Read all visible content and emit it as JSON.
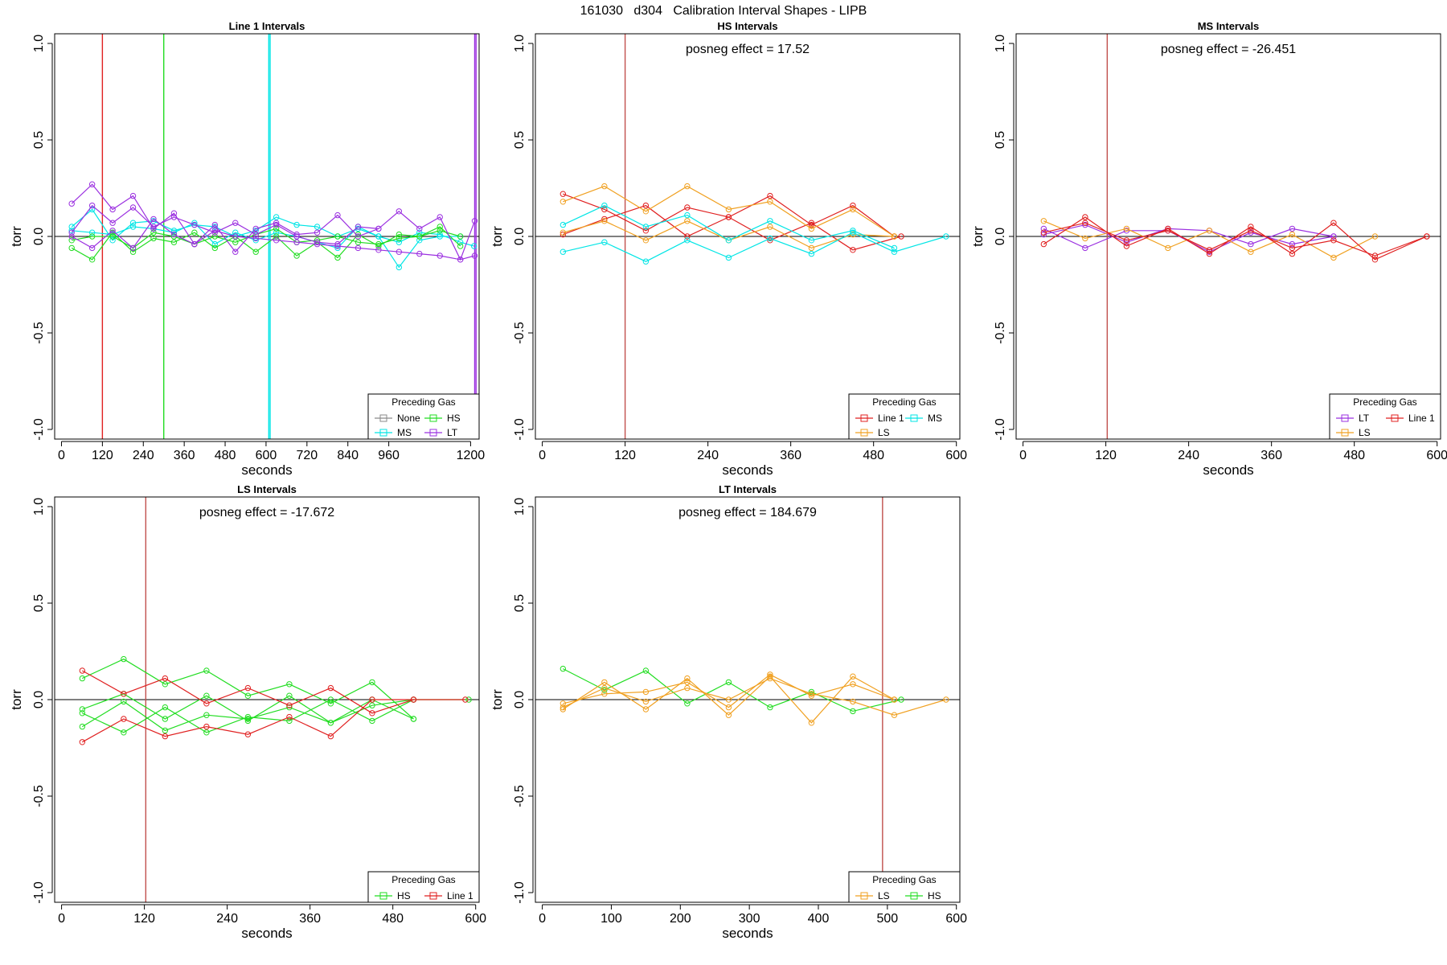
{
  "page_title": "161030   d304   Calibration Interval Shapes - LIPB",
  "colors": {
    "None": "#8a8a8a",
    "MS": "#00e5e5",
    "HS": "#22dd22",
    "LT": "#9b30e0",
    "Line 1": "#e02020",
    "LS": "#f0a020",
    "marker_line": "#c0504d"
  },
  "chart_data": [
    {
      "type": "line",
      "title": "Line 1 Intervals",
      "xlabel": "seconds",
      "ylabel": "torr",
      "xlim": [
        -20,
        1225
      ],
      "ylim": [
        -1.05,
        1.05
      ],
      "xticks": [
        0,
        120,
        240,
        360,
        480,
        600,
        720,
        840,
        960,
        1200
      ],
      "yticks": [
        -1.0,
        -0.5,
        0.0,
        0.5,
        1.0
      ],
      "ytick_labels": [
        "-1.0",
        "-0.5",
        "0.0",
        "0.5",
        "1.0"
      ],
      "posneg_label": "",
      "legend": {
        "title": "Preceding Gas",
        "entries": [
          "None",
          "HS",
          "MS",
          "LT"
        ],
        "columns": 2
      },
      "vlines": [
        {
          "x": 120,
          "color": "Line 1"
        },
        {
          "x": 300,
          "color": "HS"
        },
        {
          "x": 608,
          "color": "MS"
        },
        {
          "x": 612,
          "color": "MS"
        },
        {
          "x": 1212,
          "color": "LT"
        },
        {
          "x": 1216,
          "color": "LT"
        }
      ],
      "series": [
        {
          "gas": "MS",
          "x": [
            30,
            90,
            150,
            210,
            270,
            330,
            390,
            450,
            510,
            570,
            630,
            690,
            750,
            810,
            870,
            930,
            990,
            1050,
            1110,
            1170
          ],
          "y": [
            0.05,
            0.14,
            -0.02,
            0.07,
            0.08,
            0.03,
            0.06,
            0.05,
            0.0,
            0.03,
            0.1,
            0.06,
            0.05,
            0.0,
            0.04,
            0.0,
            -0.16,
            -0.02,
            0.0,
            0.0
          ]
        },
        {
          "gas": "MS",
          "x": [
            30,
            90,
            150,
            210,
            270,
            330,
            390,
            450,
            510,
            570,
            630,
            690,
            750,
            810,
            870,
            930,
            990,
            1050,
            1110,
            1170,
            1210
          ],
          "y": [
            0.03,
            0.02,
            0.01,
            0.05,
            0.04,
            0.02,
            0.07,
            -0.04,
            0.02,
            -0.02,
            0.02,
            0.0,
            -0.03,
            -0.06,
            0.05,
            0.0,
            -0.03,
            0.02,
            0.01,
            -0.03,
            -0.05
          ]
        },
        {
          "gas": "HS",
          "x": [
            30,
            90,
            150,
            210,
            270,
            330,
            390,
            450,
            510,
            570,
            630,
            690,
            750,
            810,
            870,
            930,
            990,
            1050,
            1110,
            1170
          ],
          "y": [
            -0.06,
            -0.12,
            0.02,
            -0.08,
            -0.01,
            -0.03,
            0.02,
            -0.06,
            0.0,
            -0.08,
            0.0,
            -0.1,
            -0.03,
            -0.11,
            0.01,
            -0.05,
            0.01,
            0.0,
            0.03,
            0.0
          ]
        },
        {
          "gas": "HS",
          "x": [
            30,
            90,
            150,
            210,
            270,
            330,
            390,
            450,
            510,
            570,
            630,
            690,
            750,
            810,
            870,
            930,
            990,
            1050,
            1110,
            1170
          ],
          "y": [
            -0.02,
            0.0,
            0.0,
            -0.06,
            0.02,
            0.0,
            -0.04,
            0.0,
            -0.03,
            0.01,
            0.04,
            -0.03,
            -0.02,
            0.0,
            -0.03,
            -0.04,
            -0.01,
            0.0,
            0.05,
            -0.05
          ]
        },
        {
          "gas": "LT",
          "x": [
            30,
            90,
            150,
            210,
            270,
            330,
            390,
            450,
            510,
            570,
            630,
            690,
            750,
            810,
            870,
            930,
            990,
            1050,
            1110,
            1170,
            1212
          ],
          "y": [
            0.17,
            0.27,
            0.14,
            0.21,
            0.04,
            0.12,
            -0.04,
            0.06,
            -0.08,
            0.04,
            0.07,
            0.01,
            0.02,
            0.11,
            0.0,
            0.04,
            0.13,
            0.04,
            0.1,
            -0.12,
            0.08
          ]
        },
        {
          "gas": "LT",
          "x": [
            30,
            90,
            150,
            210,
            270,
            330,
            390,
            450,
            510,
            570,
            630,
            690,
            750,
            810,
            870,
            930
          ],
          "y": [
            0.02,
            0.16,
            0.07,
            0.15,
            0.05,
            0.1,
            0.06,
            0.02,
            0.07,
            0.01,
            0.06,
            0.0,
            -0.03,
            -0.04,
            0.05,
            0.04
          ]
        },
        {
          "gas": "LT",
          "x": [
            30,
            90,
            150,
            210,
            270,
            330,
            390,
            450,
            510,
            570,
            630,
            690,
            750,
            810,
            870,
            930,
            990,
            1050,
            1110,
            1170,
            1212
          ],
          "y": [
            0.0,
            -0.06,
            0.03,
            -0.06,
            0.09,
            0.01,
            -0.04,
            0.03,
            0.0,
            -0.01,
            -0.02,
            -0.03,
            -0.04,
            -0.05,
            -0.06,
            -0.07,
            -0.08,
            -0.09,
            -0.1,
            -0.12,
            -0.1
          ]
        }
      ]
    },
    {
      "type": "line",
      "title": "HS Intervals",
      "xlabel": "seconds",
      "ylabel": "torr",
      "xlim": [
        -10,
        605
      ],
      "ylim": [
        -1.05,
        1.05
      ],
      "xticks": [
        0,
        120,
        240,
        360,
        480,
        600
      ],
      "yticks": [
        -1.0,
        -0.5,
        0.0,
        0.5,
        1.0
      ],
      "ytick_labels": [
        "-1.0",
        "-0.5",
        "0.0",
        "0.5",
        "1.0"
      ],
      "posneg_label": "posneg effect = 17.52",
      "legend": {
        "title": "Preceding Gas",
        "entries": [
          "Line 1",
          "MS",
          "LS"
        ],
        "columns": 2
      },
      "vlines": [
        {
          "x": 120,
          "color": "marker_line"
        }
      ],
      "series": [
        {
          "gas": "Line 1",
          "x": [
            30,
            90,
            150,
            210,
            270,
            330,
            390,
            450,
            510
          ],
          "y": [
            0.22,
            0.14,
            0.03,
            0.15,
            0.1,
            0.21,
            0.06,
            0.16,
            0.0
          ]
        },
        {
          "gas": "Line 1",
          "x": [
            30,
            90,
            150,
            210,
            270,
            330,
            390,
            450,
            520
          ],
          "y": [
            0.01,
            0.09,
            0.16,
            0.0,
            0.1,
            -0.02,
            0.07,
            -0.07,
            0.0
          ]
        },
        {
          "gas": "LS",
          "x": [
            30,
            90,
            150,
            210,
            270,
            330,
            390,
            450,
            510
          ],
          "y": [
            0.18,
            0.26,
            0.13,
            0.26,
            0.14,
            0.18,
            0.04,
            0.14,
            0.0
          ]
        },
        {
          "gas": "LS",
          "x": [
            30,
            90,
            150,
            210,
            270,
            330,
            390,
            450,
            510
          ],
          "y": [
            0.02,
            0.08,
            -0.02,
            0.08,
            -0.02,
            0.05,
            -0.06,
            0.01,
            0.0
          ]
        },
        {
          "gas": "MS",
          "x": [
            30,
            90,
            150,
            210,
            270,
            330,
            390,
            450,
            510
          ],
          "y": [
            0.06,
            0.16,
            0.05,
            0.11,
            -0.02,
            0.08,
            -0.02,
            0.03,
            -0.06
          ]
        },
        {
          "gas": "MS",
          "x": [
            30,
            90,
            150,
            210,
            270,
            330,
            390,
            450,
            510,
            585
          ],
          "y": [
            -0.08,
            -0.03,
            -0.13,
            -0.02,
            -0.11,
            -0.01,
            -0.09,
            0.02,
            -0.08,
            0.0
          ]
        }
      ]
    },
    {
      "type": "line",
      "title": "MS Intervals",
      "xlabel": "seconds",
      "ylabel": "torr",
      "xlim": [
        -10,
        605
      ],
      "ylim": [
        -1.05,
        1.05
      ],
      "xticks": [
        0,
        120,
        240,
        360,
        480,
        600
      ],
      "yticks": [
        -1.0,
        -0.5,
        0.0,
        0.5,
        1.0
      ],
      "ytick_labels": [
        "-1.0",
        "-0.5",
        "0.0",
        "0.5",
        "1.0"
      ],
      "posneg_label": "posneg effect = -26.451",
      "legend": {
        "title": "Preceding Gas",
        "entries": [
          "LT",
          "Line 1",
          "LS"
        ],
        "columns": 2
      },
      "vlines": [
        {
          "x": 122,
          "color": "marker_line"
        }
      ],
      "series": [
        {
          "gas": "LT",
          "x": [
            30,
            90,
            150,
            210,
            270,
            330,
            390,
            450
          ],
          "y": [
            0.04,
            -0.06,
            0.03,
            0.03,
            -0.08,
            0.02,
            -0.04,
            0.0
          ]
        },
        {
          "gas": "LT",
          "x": [
            30,
            90,
            150,
            210,
            270,
            330,
            390,
            450
          ],
          "y": [
            0.01,
            0.06,
            -0.03,
            0.04,
            0.03,
            -0.04,
            0.04,
            0.0
          ]
        },
        {
          "gas": "LS",
          "x": [
            30,
            90,
            150,
            210,
            270,
            330,
            390,
            450,
            510
          ],
          "y": [
            0.08,
            -0.01,
            0.04,
            -0.06,
            0.03,
            -0.08,
            0.01,
            -0.11,
            0.0
          ]
        },
        {
          "gas": "Line 1",
          "x": [
            30,
            90,
            150,
            210,
            270,
            330,
            390,
            450,
            510,
            585
          ],
          "y": [
            -0.04,
            0.1,
            -0.05,
            0.04,
            -0.09,
            0.05,
            -0.09,
            0.07,
            -0.12,
            0.0
          ]
        },
        {
          "gas": "Line 1",
          "x": [
            30,
            90,
            150,
            210,
            270,
            330,
            390,
            450,
            510,
            585
          ],
          "y": [
            0.02,
            0.07,
            -0.02,
            0.03,
            -0.07,
            0.03,
            -0.06,
            -0.02,
            -0.1,
            0.0
          ]
        }
      ]
    },
    {
      "type": "line",
      "title": "LS Intervals",
      "xlabel": "seconds",
      "ylabel": "torr",
      "xlim": [
        -10,
        605
      ],
      "ylim": [
        -1.05,
        1.05
      ],
      "xticks": [
        0,
        120,
        240,
        360,
        480,
        600
      ],
      "yticks": [
        -1.0,
        -0.5,
        0.0,
        0.5,
        1.0
      ],
      "ytick_labels": [
        "-1.0",
        "-0.5",
        "0.0",
        "0.5",
        "1.0"
      ],
      "posneg_label": "posneg effect = -17.672",
      "legend": {
        "title": "Preceding Gas",
        "entries": [
          "HS",
          "Line 1"
        ],
        "columns": 2
      },
      "vlines": [
        {
          "x": 122,
          "color": "marker_line"
        }
      ],
      "series": [
        {
          "gas": "HS",
          "x": [
            30,
            90,
            150,
            210,
            270,
            330,
            390,
            450,
            510
          ],
          "y": [
            0.11,
            0.21,
            0.08,
            0.15,
            0.02,
            0.08,
            -0.02,
            0.09,
            -0.1
          ]
        },
        {
          "gas": "HS",
          "x": [
            30,
            90,
            150,
            210,
            270,
            330,
            390,
            450,
            510
          ],
          "y": [
            -0.05,
            0.03,
            -0.1,
            0.02,
            -0.11,
            0.02,
            -0.12,
            0.0,
            -0.1
          ]
        },
        {
          "gas": "HS",
          "x": [
            30,
            90,
            150,
            210,
            270,
            330,
            390,
            450,
            510
          ],
          "y": [
            -0.07,
            -0.17,
            -0.04,
            -0.17,
            -0.09,
            -0.11,
            0.0,
            -0.11,
            0.0
          ]
        },
        {
          "gas": "HS",
          "x": [
            30,
            90,
            150,
            210,
            270,
            330,
            390,
            450,
            510,
            590
          ],
          "y": [
            -0.14,
            -0.01,
            -0.16,
            -0.08,
            -0.1,
            -0.04,
            -0.12,
            -0.03,
            0.0,
            0.0
          ]
        },
        {
          "gas": "Line 1",
          "x": [
            30,
            90,
            150,
            210,
            270,
            330,
            390,
            450,
            510
          ],
          "y": [
            0.15,
            0.03,
            0.11,
            -0.02,
            0.06,
            -0.03,
            0.06,
            -0.07,
            0.0
          ]
        },
        {
          "gas": "Line 1",
          "x": [
            30,
            90,
            150,
            210,
            270,
            330,
            390,
            450,
            510,
            585
          ],
          "y": [
            -0.22,
            -0.1,
            -0.19,
            -0.14,
            -0.18,
            -0.09,
            -0.19,
            0.0,
            0.0,
            0.0
          ]
        }
      ]
    },
    {
      "type": "line",
      "title": "LT Intervals",
      "xlabel": "seconds",
      "ylabel": "torr",
      "xlim": [
        -10,
        605
      ],
      "ylim": [
        -1.05,
        1.05
      ],
      "xticks": [
        0,
        100,
        200,
        300,
        400,
        500,
        600
      ],
      "yticks": [
        -1.0,
        -0.5,
        0.0,
        0.5,
        1.0
      ],
      "ytick_labels": [
        "-1.0",
        "-0.5",
        "0.0",
        "0.5",
        "1.0"
      ],
      "posneg_label": "posneg effect = 184.679",
      "legend": {
        "title": "Preceding Gas",
        "entries": [
          "LS",
          "HS"
        ],
        "columns": 2
      },
      "vlines": [
        {
          "x": 493,
          "color": "marker_line"
        }
      ],
      "series": [
        {
          "gas": "HS",
          "x": [
            30,
            90,
            150,
            210,
            270,
            330,
            390,
            450,
            520
          ],
          "y": [
            0.16,
            0.05,
            0.15,
            -0.02,
            0.09,
            -0.04,
            0.04,
            -0.06,
            0.0
          ]
        },
        {
          "gas": "LS",
          "x": [
            30,
            90,
            150,
            210,
            270,
            330,
            390,
            450,
            510
          ],
          "y": [
            -0.05,
            0.09,
            -0.05,
            0.11,
            -0.08,
            0.12,
            -0.12,
            0.12,
            0.0
          ]
        },
        {
          "gas": "LS",
          "x": [
            30,
            90,
            150,
            210,
            270,
            330,
            390,
            450,
            510
          ],
          "y": [
            -0.02,
            0.03,
            0.04,
            0.09,
            -0.04,
            0.13,
            0.02,
            0.08,
            0.0
          ]
        },
        {
          "gas": "LS",
          "x": [
            30,
            90,
            150,
            210,
            270,
            330,
            390,
            450,
            510,
            585
          ],
          "y": [
            -0.04,
            0.06,
            -0.01,
            0.06,
            0.0,
            0.11,
            0.03,
            -0.01,
            -0.08,
            0.0
          ]
        }
      ]
    }
  ]
}
